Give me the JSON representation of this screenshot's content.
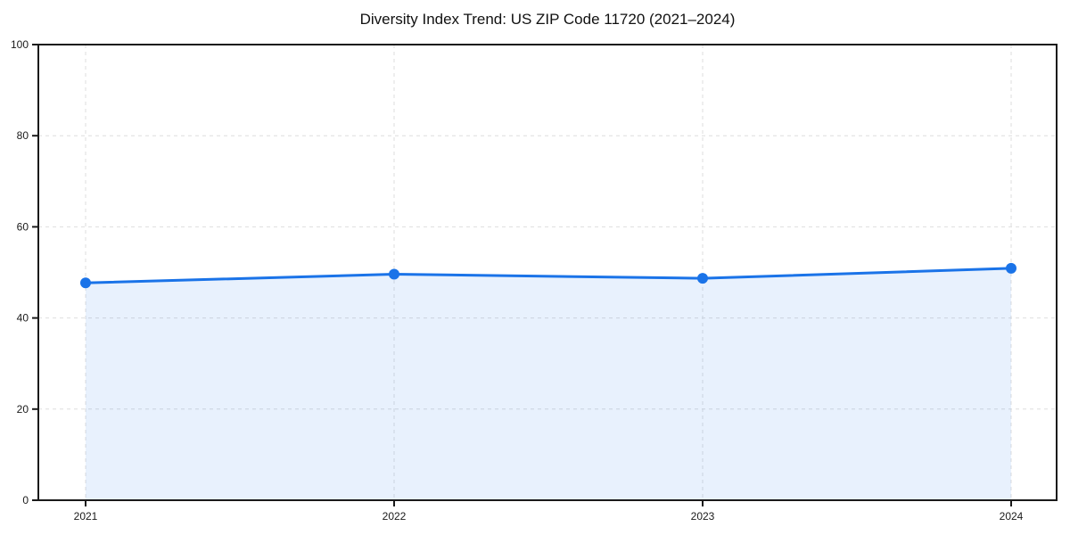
{
  "chart_data": {
    "type": "area",
    "title": "Diversity Index Trend: US ZIP Code 11720 (2021–2024)",
    "x": [
      2021,
      2022,
      2023,
      2024
    ],
    "x_tick_labels": [
      "2021",
      "2022",
      "2023",
      "2024"
    ],
    "series": [
      {
        "name": "Diversity Index",
        "values": [
          47.7,
          49.6,
          48.7,
          50.9
        ]
      }
    ],
    "xlabel": "",
    "ylabel": "",
    "ylim": [
      0,
      100
    ],
    "yticks": [
      0,
      20,
      40,
      60,
      80,
      100
    ],
    "grid": true,
    "grid_style": "dashed",
    "legend": "none",
    "colors": {
      "line": "#1a73e8",
      "marker": "#1a73e8",
      "area_fill": "rgba(26,115,232,0.10)",
      "grid": "#dedede",
      "axis": "#1a1a1a",
      "tick_text": "#1a1a1a",
      "background": "#ffffff"
    }
  }
}
